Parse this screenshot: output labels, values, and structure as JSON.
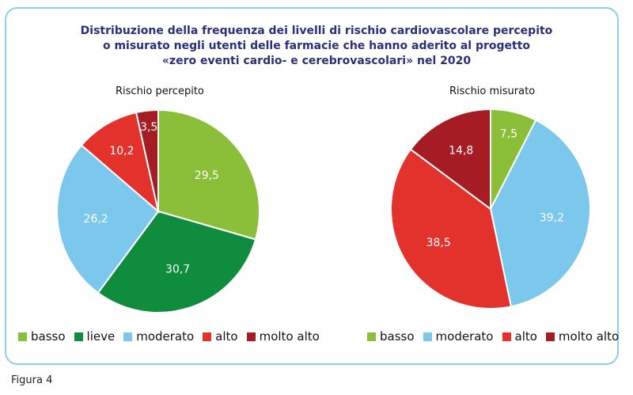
{
  "title_lines": [
    "Distribuzione della frequenza dei livelli di rischio cardiovascolare percepito",
    "o misurato negli utenti delle farmacie che hanno aderito al progetto",
    "«zero eventi cardio- e cerebrovascolari» nel 2020"
  ],
  "caption": "Figura 4",
  "colors": {
    "basso": "#8bbf3a",
    "lieve": "#0f8c3e",
    "moderato": "#7cc7ec",
    "alto": "#e3312b",
    "molto alto": "#a51c24"
  },
  "chart_data": [
    {
      "type": "pie",
      "title": "Rischio percepito",
      "slices": [
        {
          "label": "basso",
          "value": 29.5,
          "display": "29,5"
        },
        {
          "label": "lieve",
          "value": 30.7,
          "display": "30,7"
        },
        {
          "label": "moderato",
          "value": 26.2,
          "display": "26,2"
        },
        {
          "label": "alto",
          "value": 10.2,
          "display": "10,2"
        },
        {
          "label": "molto alto",
          "value": 3.5,
          "display": "3,5"
        }
      ],
      "legend": [
        "basso",
        "lieve",
        "moderato",
        "alto",
        "molto alto"
      ],
      "legend_position": "bottom"
    },
    {
      "type": "pie",
      "title": "Rischio misurato",
      "slices": [
        {
          "label": "basso",
          "value": 7.5,
          "display": "7,5"
        },
        {
          "label": "moderato",
          "value": 39.2,
          "display": "39,2"
        },
        {
          "label": "alto",
          "value": 38.5,
          "display": "38,5"
        },
        {
          "label": "molto alto",
          "value": 14.8,
          "display": "14,8"
        }
      ],
      "legend": [
        "basso",
        "moderato",
        "alto",
        "molto alto"
      ],
      "legend_position": "bottom"
    }
  ]
}
